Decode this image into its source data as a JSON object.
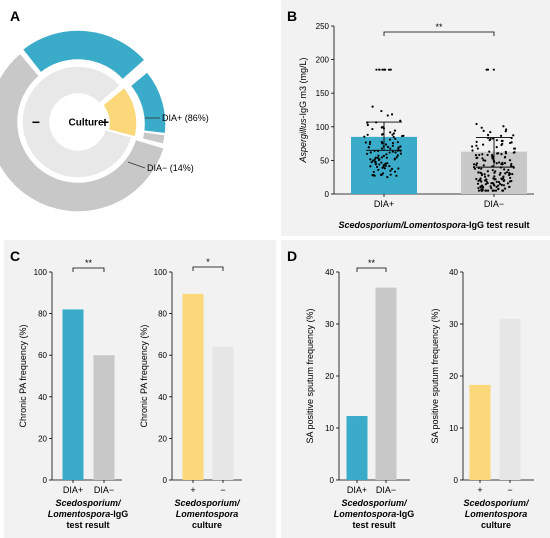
{
  "panels": {
    "A": {
      "letter": "A"
    },
    "B": {
      "letter": "B"
    },
    "C": {
      "letter": "C"
    },
    "D": {
      "letter": "D"
    }
  },
  "colors": {
    "dia_pos": "#3aacc9",
    "dia_neg": "#c8c8c8",
    "culture_pos": "#fbd97a",
    "culture_neg": "#e6e6e6",
    "sunburst_grey": "#c8c8c8",
    "inner_light": "#e8e8e8"
  },
  "chart_data": [
    {
      "id": "A",
      "type": "pie",
      "center_label": "Culture",
      "inner_labels": [
        "−",
        "+"
      ],
      "outer_labels": [
        "DIA+ (86%)",
        "DIA− (14%)"
      ],
      "inner_ring": [
        {
          "name": "−",
          "value": 85
        },
        {
          "name": "+",
          "value": 15
        }
      ],
      "outer_ring": [
        {
          "parent": "−",
          "name": "DIA+",
          "value": 24
        },
        {
          "parent": "−",
          "name": "DIA−",
          "value": 61
        },
        {
          "parent": "+",
          "name": "DIA+",
          "value": 12.9
        },
        {
          "parent": "+",
          "name": "DIA−",
          "value": 2.1
        }
      ]
    },
    {
      "id": "B",
      "type": "bar",
      "ylabel_italic": "Aspergillus",
      "ylabel_rest": "-IgG m3 (mg/L)",
      "ylim": [
        0,
        250
      ],
      "yticks": [
        "0",
        "50",
        "100",
        "150",
        "200",
        "250"
      ],
      "categories": [
        "DIA+",
        "DIA−"
      ],
      "values": [
        85,
        63
      ],
      "iqr": [
        [
          65,
          107
        ],
        [
          40,
          84
        ]
      ],
      "significance": "**",
      "xlabel_italic": "Scedosporium/Lomentospora",
      "xlabel_rest": "-IgG test result"
    },
    {
      "id": "C1",
      "type": "bar",
      "ylabel": "Chronic PA frequency (%)",
      "ylim": [
        0,
        100
      ],
      "yticks": [
        "0",
        "20",
        "40",
        "60",
        "80",
        "100"
      ],
      "categories": [
        "DIA+",
        "DIA−"
      ],
      "values": [
        82,
        60
      ],
      "significance": "**",
      "xlabel_lines": [
        {
          "text": "Scedosporium/",
          "italic": true
        },
        {
          "text": "Lomentospora",
          "italic": true,
          "suffix": "-IgG"
        },
        {
          "text": "test result",
          "italic": false
        }
      ]
    },
    {
      "id": "C2",
      "type": "bar",
      "ylabel": "Chronic PA frequency (%)",
      "ylim": [
        0,
        100
      ],
      "yticks": [
        "0",
        "20",
        "40",
        "60",
        "80",
        "100"
      ],
      "categories": [
        "+",
        "−"
      ],
      "values": [
        89.5,
        64
      ],
      "significance": "*",
      "xlabel_lines": [
        {
          "text": "Scedosporium/",
          "italic": true
        },
        {
          "text": "Lomentospora",
          "italic": true,
          "suffix": ""
        },
        {
          "text": "culture",
          "italic": false
        }
      ]
    },
    {
      "id": "D1",
      "type": "bar",
      "ylabel": "SA positive sputum  frequency (%)",
      "ylim": [
        0,
        40
      ],
      "yticks": [
        "0",
        "10",
        "20",
        "30",
        "40"
      ],
      "categories": [
        "DIA+",
        "DIA−"
      ],
      "values": [
        12.3,
        37
      ],
      "significance": "**",
      "xlabel_lines": [
        {
          "text": "Scedosporium/",
          "italic": true
        },
        {
          "text": "Lomentospora",
          "italic": true,
          "suffix": "-IgG"
        },
        {
          "text": "test result",
          "italic": false
        }
      ]
    },
    {
      "id": "D2",
      "type": "bar",
      "ylabel": "SA positive sputum  frequency (%)",
      "ylim": [
        0,
        40
      ],
      "yticks": [
        "0",
        "10",
        "20",
        "30",
        "40"
      ],
      "categories": [
        "+",
        "−"
      ],
      "values": [
        18.3,
        31
      ],
      "significance": "",
      "xlabel_lines": [
        {
          "text": "Scedosporium/",
          "italic": true
        },
        {
          "text": "Lomentospora",
          "italic": true,
          "suffix": ""
        },
        {
          "text": "culture",
          "italic": false
        }
      ]
    }
  ]
}
